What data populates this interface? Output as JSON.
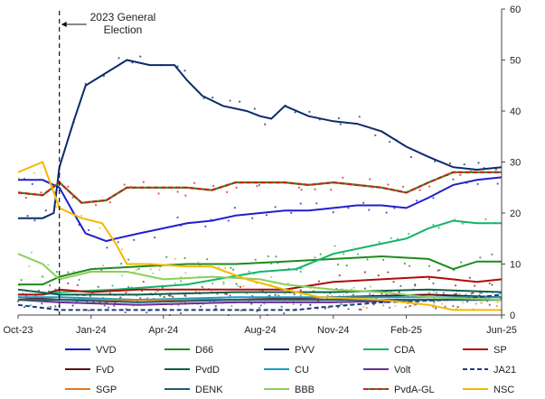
{
  "chart_data": {
    "type": "line",
    "title": "",
    "xlabel": "",
    "ylabel": "",
    "ylim": [
      0,
      60
    ],
    "yticks": [
      "0",
      "10",
      "20",
      "30",
      "40",
      "50",
      "60"
    ],
    "yaxis_side": "right",
    "x_range": [
      "2023-10-01",
      "2025-06-01"
    ],
    "xticks": [
      {
        "date": "2023-10-01",
        "label": "Oct-23"
      },
      {
        "date": "2024-01-01",
        "label": "Jan-24"
      },
      {
        "date": "2024-04-01",
        "label": "Apr-24"
      },
      {
        "date": "2024-08-01",
        "label": "Aug-24"
      },
      {
        "date": "2024-11-01",
        "label": "Nov-24"
      },
      {
        "date": "2025-02-01",
        "label": "Feb-25"
      },
      {
        "date": "2025-06-01",
        "label": "Jun-25"
      }
    ],
    "grid": false,
    "legend_position": "bottom",
    "annotation": {
      "lines": [
        "2023 General",
        "Election"
      ],
      "date": "2023-11-22"
    },
    "series": [
      {
        "name": "VVD",
        "color": "#1f1fcc",
        "dash": "",
        "points": [
          [
            "2023-10-01",
            26.5
          ],
          [
            "2023-11-01",
            26.5
          ],
          [
            "2023-11-22",
            25
          ],
          [
            "2023-12-10",
            20
          ],
          [
            "2023-12-25",
            16
          ],
          [
            "2024-01-20",
            14.5
          ],
          [
            "2024-02-01",
            15
          ],
          [
            "2024-03-01",
            16
          ],
          [
            "2024-04-01",
            17
          ],
          [
            "2024-05-01",
            18
          ],
          [
            "2024-06-01",
            18.5
          ],
          [
            "2024-07-01",
            19.5
          ],
          [
            "2024-08-01",
            20
          ],
          [
            "2024-09-01",
            20.5
          ],
          [
            "2024-10-01",
            20.5
          ],
          [
            "2024-11-01",
            21
          ],
          [
            "2024-12-01",
            21.5
          ],
          [
            "2025-01-01",
            21.5
          ],
          [
            "2025-02-01",
            21
          ],
          [
            "2025-03-01",
            23
          ],
          [
            "2025-04-01",
            25.5
          ],
          [
            "2025-05-01",
            26.5
          ],
          [
            "2025-06-01",
            27
          ]
        ]
      },
      {
        "name": "D66",
        "color": "#1e8a1e",
        "dash": "",
        "points": [
          [
            "2023-10-01",
            6
          ],
          [
            "2023-11-01",
            6
          ],
          [
            "2023-11-22",
            7.5
          ],
          [
            "2024-01-01",
            9
          ],
          [
            "2024-03-01",
            9.5
          ],
          [
            "2024-05-01",
            10
          ],
          [
            "2024-07-01",
            10
          ],
          [
            "2024-09-01",
            10.5
          ],
          [
            "2024-11-01",
            11
          ],
          [
            "2025-01-01",
            11.5
          ],
          [
            "2025-03-01",
            11
          ],
          [
            "2025-04-01",
            9
          ],
          [
            "2025-05-01",
            10.5
          ],
          [
            "2025-06-01",
            10.5
          ]
        ]
      },
      {
        "name": "PVV",
        "color": "#0d2a6b",
        "dash": "",
        "points": [
          [
            "2023-10-01",
            19
          ],
          [
            "2023-11-01",
            19
          ],
          [
            "2023-11-15",
            20
          ],
          [
            "2023-11-22",
            29
          ],
          [
            "2023-12-10",
            38
          ],
          [
            "2023-12-25",
            45
          ],
          [
            "2024-01-15",
            47
          ],
          [
            "2024-02-15",
            50
          ],
          [
            "2024-03-15",
            49
          ],
          [
            "2024-04-15",
            49
          ],
          [
            "2024-05-01",
            46
          ],
          [
            "2024-05-20",
            43
          ],
          [
            "2024-06-15",
            41
          ],
          [
            "2024-07-15",
            40
          ],
          [
            "2024-08-01",
            39
          ],
          [
            "2024-08-15",
            38.5
          ],
          [
            "2024-09-01",
            41
          ],
          [
            "2024-10-01",
            39
          ],
          [
            "2024-11-01",
            38
          ],
          [
            "2024-12-01",
            37.5
          ],
          [
            "2025-01-01",
            36
          ],
          [
            "2025-02-01",
            33
          ],
          [
            "2025-03-01",
            31
          ],
          [
            "2025-04-01",
            29
          ],
          [
            "2025-05-01",
            28.5
          ],
          [
            "2025-06-01",
            29
          ]
        ]
      },
      {
        "name": "CDA",
        "color": "#14b36a",
        "dash": "",
        "points": [
          [
            "2023-10-01",
            4
          ],
          [
            "2023-11-01",
            4
          ],
          [
            "2023-11-22",
            4.5
          ],
          [
            "2024-02-01",
            5
          ],
          [
            "2024-05-01",
            6
          ],
          [
            "2024-08-01",
            8.5
          ],
          [
            "2024-09-15",
            9
          ],
          [
            "2024-11-01",
            12
          ],
          [
            "2025-01-01",
            14
          ],
          [
            "2025-02-01",
            15
          ],
          [
            "2025-03-01",
            17
          ],
          [
            "2025-04-01",
            18.5
          ],
          [
            "2025-05-01",
            18
          ],
          [
            "2025-06-01",
            18
          ]
        ]
      },
      {
        "name": "SP",
        "color": "#b00b0b",
        "dash": "",
        "points": [
          [
            "2023-10-01",
            4
          ],
          [
            "2023-11-01",
            4
          ],
          [
            "2023-11-22",
            5
          ],
          [
            "2024-01-01",
            4.5
          ],
          [
            "2024-03-01",
            5
          ],
          [
            "2024-05-01",
            5
          ],
          [
            "2024-07-01",
            5
          ],
          [
            "2024-09-01",
            5
          ],
          [
            "2024-11-01",
            6.5
          ],
          [
            "2025-01-01",
            7
          ],
          [
            "2025-03-01",
            7.5
          ],
          [
            "2025-05-01",
            6.5
          ],
          [
            "2025-06-01",
            7
          ]
        ]
      },
      {
        "name": "FvD",
        "color": "#5a1414",
        "dash": "",
        "points": [
          [
            "2023-10-01",
            3.5
          ],
          [
            "2023-11-22",
            3
          ],
          [
            "2024-03-01",
            3
          ],
          [
            "2024-07-01",
            3
          ],
          [
            "2024-11-01",
            3.5
          ],
          [
            "2025-03-01",
            4
          ],
          [
            "2025-06-01",
            3.5
          ]
        ]
      },
      {
        "name": "PvdD",
        "color": "#0f5e4a",
        "dash": "",
        "points": [
          [
            "2023-10-01",
            5
          ],
          [
            "2023-11-22",
            4
          ],
          [
            "2024-03-01",
            4
          ],
          [
            "2024-07-01",
            4.5
          ],
          [
            "2024-11-01",
            4.5
          ],
          [
            "2025-03-01",
            5
          ],
          [
            "2025-06-01",
            4.5
          ]
        ]
      },
      {
        "name": "CU",
        "color": "#1a9ec9",
        "dash": "",
        "points": [
          [
            "2023-10-01",
            3.5
          ],
          [
            "2023-11-22",
            3.5
          ],
          [
            "2024-03-01",
            3
          ],
          [
            "2024-07-01",
            3.5
          ],
          [
            "2024-11-01",
            3.5
          ],
          [
            "2025-03-01",
            3.5
          ],
          [
            "2025-06-01",
            3.5
          ]
        ]
      },
      {
        "name": "Volt",
        "color": "#6a2c91",
        "dash": "",
        "points": [
          [
            "2023-10-01",
            3
          ],
          [
            "2023-11-22",
            2.5
          ],
          [
            "2024-03-01",
            2
          ],
          [
            "2024-07-01",
            2.5
          ],
          [
            "2024-11-01",
            2.5
          ],
          [
            "2025-03-01",
            3
          ],
          [
            "2025-06-01",
            3
          ]
        ]
      },
      {
        "name": "JA21",
        "color": "#1a3d7a",
        "dash": "5,3",
        "points": [
          [
            "2023-10-01",
            2
          ],
          [
            "2023-11-22",
            1
          ],
          [
            "2024-03-01",
            1
          ],
          [
            "2024-08-01",
            1
          ],
          [
            "2024-09-15",
            1
          ],
          [
            "2024-10-15",
            1.5
          ],
          [
            "2025-01-01",
            2.5
          ],
          [
            "2025-04-01",
            3
          ],
          [
            "2025-06-01",
            4
          ]
        ]
      },
      {
        "name": "SGP",
        "color": "#e07820",
        "dash": "",
        "points": [
          [
            "2023-10-01",
            3
          ],
          [
            "2023-11-22",
            3
          ],
          [
            "2024-03-01",
            3
          ],
          [
            "2024-07-01",
            3
          ],
          [
            "2024-11-01",
            3
          ],
          [
            "2025-03-01",
            3
          ],
          [
            "2025-06-01",
            3
          ]
        ]
      },
      {
        "name": "DENK",
        "color": "#1d5c6e",
        "dash": "",
        "points": [
          [
            "2023-10-01",
            3
          ],
          [
            "2023-11-22",
            3
          ],
          [
            "2024-03-01",
            2.5
          ],
          [
            "2024-07-01",
            3
          ],
          [
            "2024-11-01",
            3
          ],
          [
            "2025-03-01",
            3
          ],
          [
            "2025-06-01",
            3
          ]
        ]
      },
      {
        "name": "BBB",
        "color": "#8ccf5a",
        "dash": "",
        "points": [
          [
            "2023-10-01",
            12
          ],
          [
            "2023-11-01",
            10
          ],
          [
            "2023-11-22",
            7
          ],
          [
            "2024-01-01",
            8.5
          ],
          [
            "2024-02-15",
            8.5
          ],
          [
            "2024-04-01",
            7
          ],
          [
            "2024-06-01",
            7.5
          ],
          [
            "2024-08-01",
            7
          ],
          [
            "2024-09-01",
            6
          ],
          [
            "2024-11-01",
            5
          ],
          [
            "2025-01-01",
            4.5
          ],
          [
            "2025-03-01",
            3.5
          ],
          [
            "2025-06-01",
            3
          ]
        ]
      },
      {
        "name": "PvdA-GL",
        "color": "#cc1f1f",
        "line2": "#3a8a1a",
        "dash": "5,3",
        "points": [
          [
            "2023-10-01",
            24
          ],
          [
            "2023-11-01",
            23.5
          ],
          [
            "2023-11-22",
            26
          ],
          [
            "2023-12-20",
            22
          ],
          [
            "2024-01-20",
            22.5
          ],
          [
            "2024-02-15",
            25
          ],
          [
            "2024-05-01",
            25
          ],
          [
            "2024-06-01",
            24.5
          ],
          [
            "2024-07-01",
            26
          ],
          [
            "2024-09-01",
            26
          ],
          [
            "2024-10-01",
            25.5
          ],
          [
            "2024-11-01",
            26
          ],
          [
            "2025-01-01",
            25
          ],
          [
            "2025-02-01",
            24
          ],
          [
            "2025-03-01",
            26
          ],
          [
            "2025-04-01",
            28
          ],
          [
            "2025-05-01",
            28
          ],
          [
            "2025-06-01",
            28
          ]
        ]
      },
      {
        "name": "NSC",
        "color": "#f5b800",
        "dash": "",
        "points": [
          [
            "2023-10-01",
            28
          ],
          [
            "2023-11-01",
            30
          ],
          [
            "2023-11-22",
            21
          ],
          [
            "2023-12-20",
            19
          ],
          [
            "2024-01-15",
            18
          ],
          [
            "2024-02-01",
            14
          ],
          [
            "2024-02-15",
            10
          ],
          [
            "2024-03-15",
            10
          ],
          [
            "2024-05-01",
            9.5
          ],
          [
            "2024-06-01",
            9.5
          ],
          [
            "2024-07-15",
            7
          ],
          [
            "2024-09-01",
            5
          ],
          [
            "2024-10-15",
            3.5
          ],
          [
            "2025-01-01",
            3
          ],
          [
            "2025-03-01",
            2
          ],
          [
            "2025-04-01",
            1
          ],
          [
            "2025-06-01",
            1
          ]
        ]
      }
    ]
  }
}
